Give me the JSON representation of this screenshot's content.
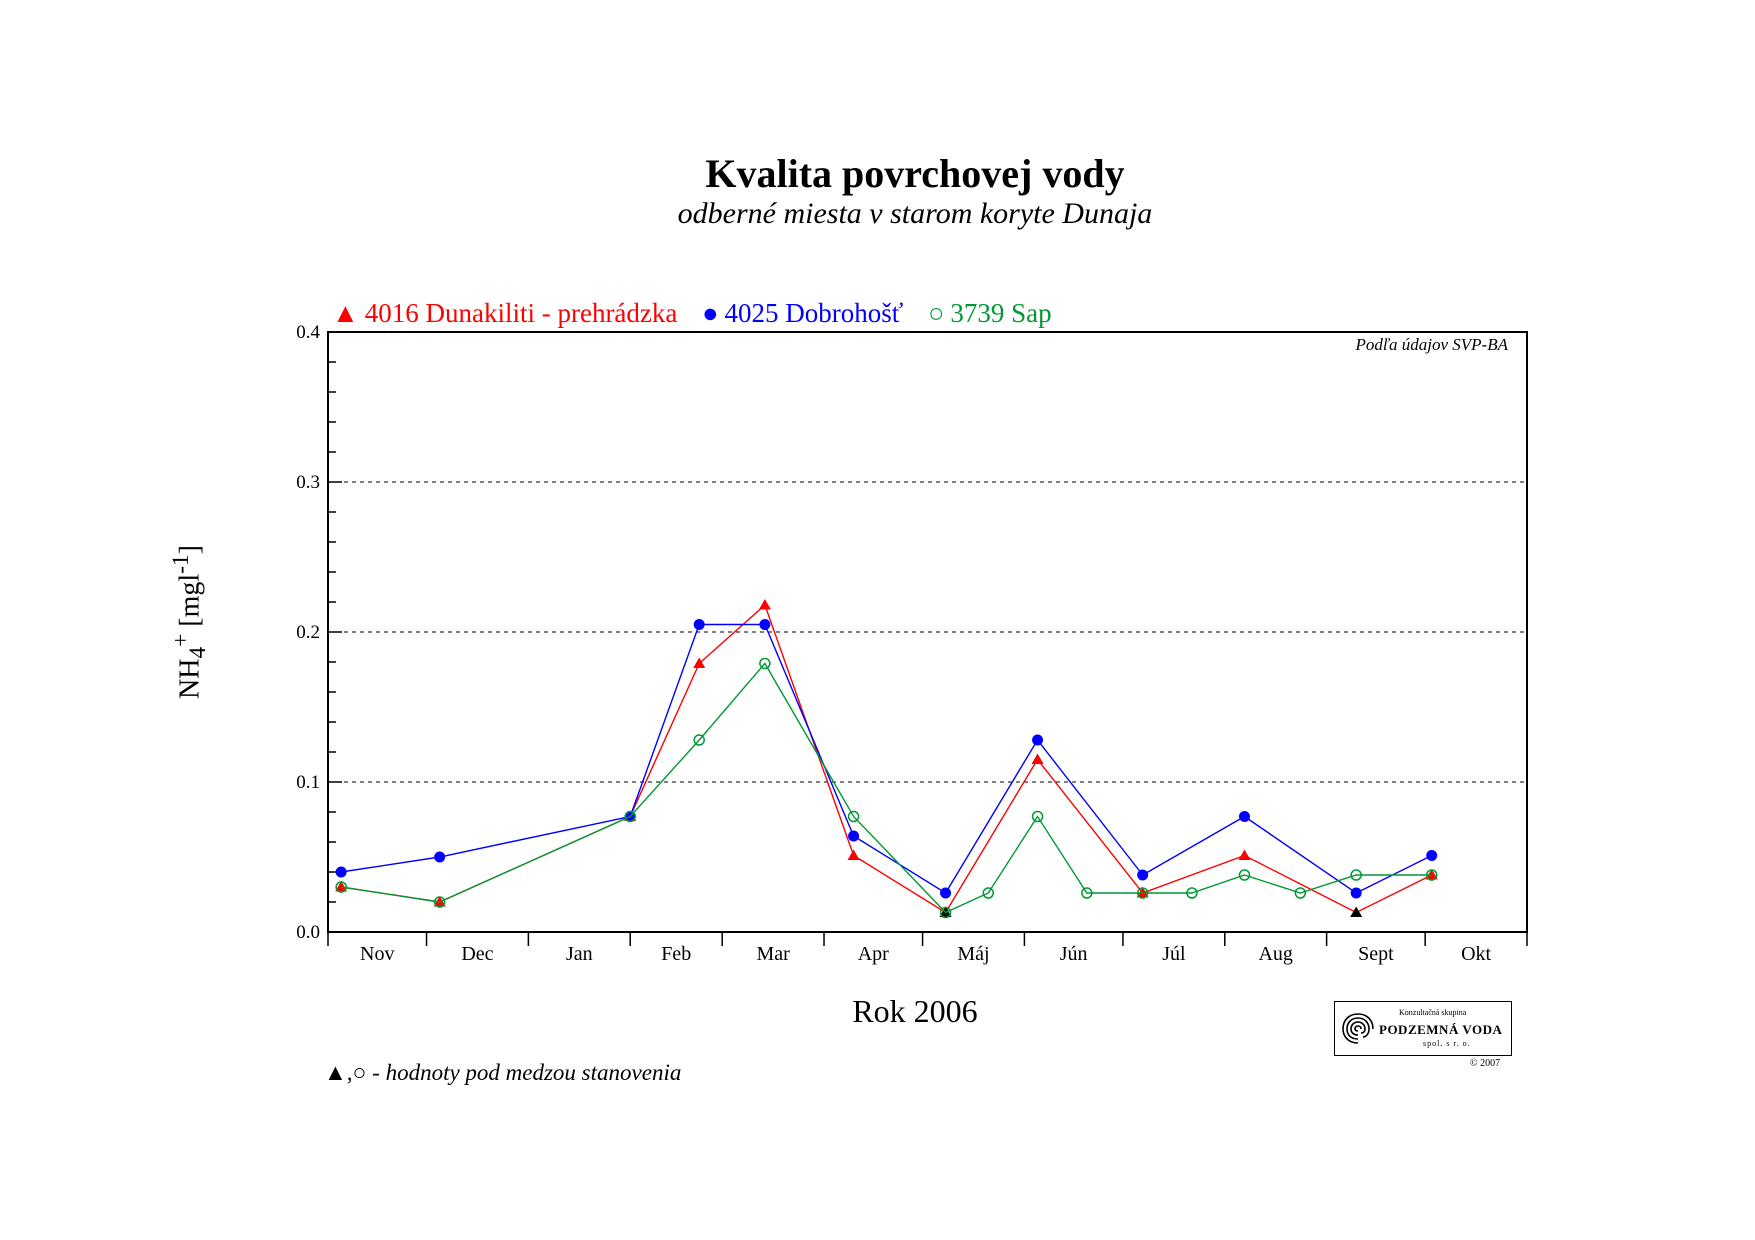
{
  "chart_data": {
    "type": "line",
    "title": "Kvalita povrchovej vody",
    "subtitle": "odberné miesta v starom koryte Dunaja",
    "xlabel": "Rok 2006",
    "ylabel_main": "NH",
    "ylabel_sub": "4",
    "ylabel_sup": "+",
    "ylabel_unit_pre": " [mgl",
    "ylabel_unit_sup": "-1",
    "ylabel_unit_post": "]",
    "ylim": [
      0,
      0.4
    ],
    "yticks": [
      "0.0",
      "0.1",
      "0.2",
      "0.3",
      "0.4"
    ],
    "grid": "dashed at 0.1, 0.2, 0.3",
    "months": [
      "Nov",
      "Dec",
      "Jan",
      "Feb",
      "Mar",
      "Apr",
      "Máj",
      "Jún",
      "Júl",
      "Aug",
      "Sept",
      "Okt"
    ],
    "source_note": "Podľa údajov SVP-BA",
    "legend_position": "top-left",
    "series": [
      {
        "name": "4016 Dunakiliti - prehrádzka",
        "color": "#ff0000",
        "marker": "filled-triangle",
        "points": [
          {
            "x": "2005-11-05",
            "y": 0.03
          },
          {
            "x": "2005-12-05",
            "y": 0.02
          },
          {
            "x": "2006-02-01",
            "y": 0.077
          },
          {
            "x": "2006-02-22",
            "y": 0.179
          },
          {
            "x": "2006-03-14",
            "y": 0.218
          },
          {
            "x": "2006-04-10",
            "y": 0.051
          },
          {
            "x": "2006-05-08",
            "y": 0.013,
            "below_detection": true
          },
          {
            "x": "2006-06-05",
            "y": 0.115
          },
          {
            "x": "2006-07-07",
            "y": 0.026
          },
          {
            "x": "2006-08-07",
            "y": 0.051
          },
          {
            "x": "2006-09-10",
            "y": 0.013,
            "below_detection": true
          },
          {
            "x": "2006-10-03",
            "y": 0.038
          }
        ]
      },
      {
        "name": "4025 Dobrohošť",
        "color": "#0000ff",
        "marker": "filled-circle",
        "points": [
          {
            "x": "2005-11-05",
            "y": 0.04
          },
          {
            "x": "2005-12-05",
            "y": 0.05
          },
          {
            "x": "2006-02-01",
            "y": 0.077
          },
          {
            "x": "2006-02-22",
            "y": 0.205
          },
          {
            "x": "2006-03-14",
            "y": 0.205
          },
          {
            "x": "2006-04-10",
            "y": 0.064
          },
          {
            "x": "2006-05-08",
            "y": 0.026
          },
          {
            "x": "2006-06-05",
            "y": 0.128
          },
          {
            "x": "2006-07-07",
            "y": 0.038
          },
          {
            "x": "2006-08-07",
            "y": 0.077
          },
          {
            "x": "2006-09-10",
            "y": 0.026
          },
          {
            "x": "2006-10-03",
            "y": 0.051
          }
        ]
      },
      {
        "name": "3739 Sap",
        "color": "#009933",
        "marker": "open-circle",
        "points": [
          {
            "x": "2005-11-05",
            "y": 0.03
          },
          {
            "x": "2005-12-05",
            "y": 0.02
          },
          {
            "x": "2006-02-01",
            "y": 0.077
          },
          {
            "x": "2006-02-22",
            "y": 0.128
          },
          {
            "x": "2006-03-14",
            "y": 0.179
          },
          {
            "x": "2006-04-10",
            "y": 0.077
          },
          {
            "x": "2006-05-08",
            "y": 0.013
          },
          {
            "x": "2006-05-21",
            "y": 0.026
          },
          {
            "x": "2006-06-05",
            "y": 0.077
          },
          {
            "x": "2006-06-20",
            "y": 0.026
          },
          {
            "x": "2006-07-07",
            "y": 0.026
          },
          {
            "x": "2006-07-22",
            "y": 0.026
          },
          {
            "x": "2006-08-07",
            "y": 0.038
          },
          {
            "x": "2006-08-24",
            "y": 0.026
          },
          {
            "x": "2006-09-10",
            "y": 0.038
          },
          {
            "x": "2006-10-03",
            "y": 0.038
          }
        ]
      }
    ]
  },
  "legend_symbols": [
    "▲",
    "●",
    "○"
  ],
  "below_detection_note": {
    "symbols": "▲,○",
    "text": " - hodnoty pod medzou stanovenia"
  },
  "logo": {
    "top_text": "Konzultačná skupina",
    "main_text": "PODZEMNÁ VODA",
    "bottom_text": "spol. s r. o.",
    "copyright": "© 2007"
  }
}
